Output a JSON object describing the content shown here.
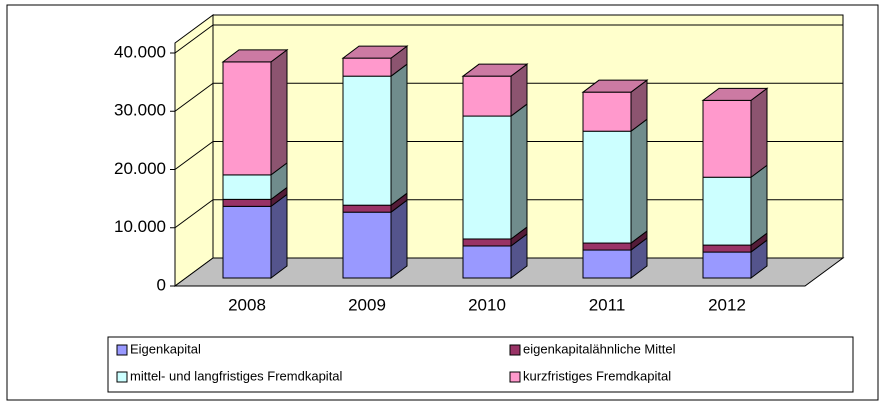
{
  "chart_data": {
    "type": "bar",
    "stacked": true,
    "three_d": true,
    "categories": [
      "2008",
      "2009",
      "2010",
      "2011",
      "2012"
    ],
    "series": [
      {
        "name": "Eigenkapital",
        "color": "#9999ff",
        "values": [
          12300,
          11300,
          5500,
          4800,
          4450
        ]
      },
      {
        "name": "eigenkapitalähnliche Mittel",
        "color": "#993366",
        "values": [
          1200,
          1200,
          1200,
          1200,
          1200
        ]
      },
      {
        "name": "mittel- und langfristiges Fremdkapital",
        "color": "#ccffff",
        "values": [
          4200,
          22150,
          21100,
          19200,
          11650
        ]
      },
      {
        "name": "kurzfristiges Fremdkapital",
        "color": "#ff99cc",
        "values": [
          19400,
          3100,
          6850,
          6700,
          13200
        ]
      }
    ],
    "ylim": [
      0,
      40000
    ],
    "yticks": [
      0,
      {
        "value": 10000,
        "label": "10.000"
      },
      {
        "value": 20000,
        "label": "20.000"
      },
      {
        "value": 30000,
        "label": "30.000"
      },
      {
        "value": 40000,
        "label": "40.000"
      }
    ],
    "grid": true,
    "legend": "bottom"
  }
}
